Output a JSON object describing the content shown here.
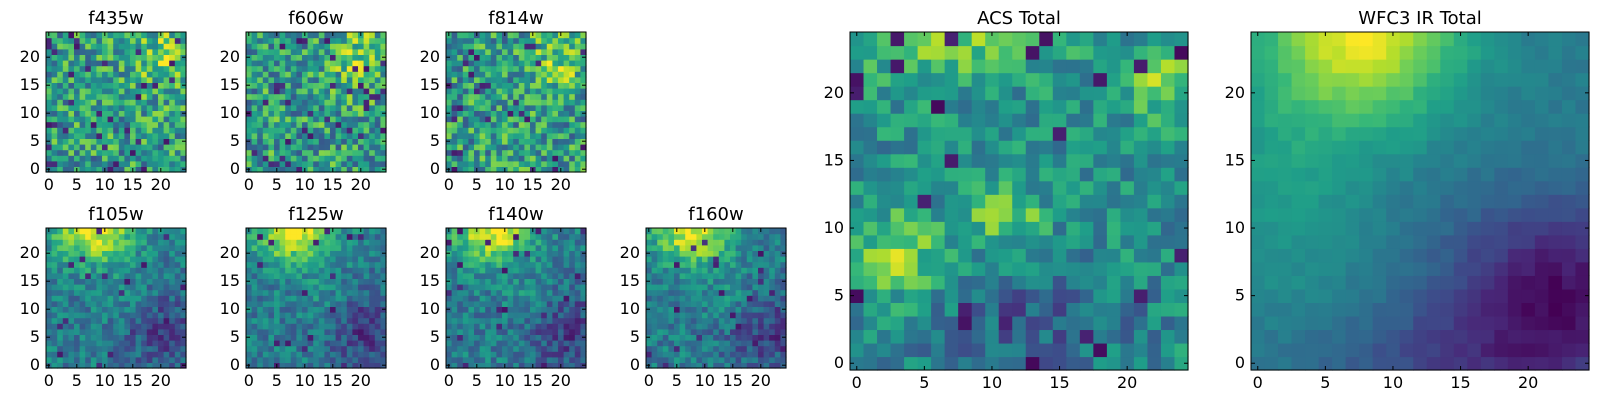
{
  "chart_data": [
    {
      "type": "heatmap",
      "title": "f435w",
      "grid": 25,
      "seed": 11,
      "pattern": "noise",
      "xticks": [
        0,
        5,
        10,
        15,
        20
      ],
      "yticks": [
        0,
        5,
        10,
        15,
        20
      ],
      "xlim": [
        0,
        24
      ],
      "ylim": [
        0,
        24
      ],
      "colormap": "viridis"
    },
    {
      "type": "heatmap",
      "title": "f606w",
      "grid": 25,
      "seed": 23,
      "pattern": "noise",
      "xticks": [
        0,
        5,
        10,
        15,
        20
      ],
      "yticks": [
        0,
        5,
        10,
        15,
        20
      ],
      "xlim": [
        0,
        24
      ],
      "ylim": [
        0,
        24
      ],
      "colormap": "viridis"
    },
    {
      "type": "heatmap",
      "title": "f814w",
      "grid": 25,
      "seed": 37,
      "pattern": "noise",
      "xticks": [
        0,
        5,
        10,
        15,
        20
      ],
      "yticks": [
        0,
        5,
        10,
        15,
        20
      ],
      "xlim": [
        0,
        24
      ],
      "ylim": [
        0,
        24
      ],
      "colormap": "viridis"
    },
    {
      "type": "heatmap",
      "title": "f105w",
      "grid": 25,
      "seed": 41,
      "pattern": "mixed",
      "xticks": [
        0,
        5,
        10,
        15,
        20
      ],
      "yticks": [
        0,
        5,
        10,
        15,
        20
      ],
      "xlim": [
        0,
        24
      ],
      "ylim": [
        0,
        24
      ],
      "colormap": "viridis"
    },
    {
      "type": "heatmap",
      "title": "f125w",
      "grid": 25,
      "seed": 53,
      "pattern": "mixed",
      "xticks": [
        0,
        5,
        10,
        15,
        20
      ],
      "yticks": [
        0,
        5,
        10,
        15,
        20
      ],
      "xlim": [
        0,
        24
      ],
      "ylim": [
        0,
        24
      ],
      "colormap": "viridis"
    },
    {
      "type": "heatmap",
      "title": "f140w",
      "grid": 25,
      "seed": 67,
      "pattern": "mixed",
      "xticks": [
        0,
        5,
        10,
        15,
        20
      ],
      "yticks": [
        0,
        5,
        10,
        15,
        20
      ],
      "xlim": [
        0,
        24
      ],
      "ylim": [
        0,
        24
      ],
      "colormap": "viridis"
    },
    {
      "type": "heatmap",
      "title": "f160w",
      "grid": 25,
      "seed": 79,
      "pattern": "mixed",
      "xticks": [
        0,
        5,
        10,
        15,
        20
      ],
      "yticks": [
        0,
        5,
        10,
        15,
        20
      ],
      "xlim": [
        0,
        24
      ],
      "ylim": [
        0,
        24
      ],
      "colormap": "viridis"
    },
    {
      "type": "heatmap",
      "title": "ACS Total",
      "grid": 25,
      "seed": 97,
      "pattern": "acs",
      "xticks": [
        0,
        5,
        10,
        15,
        20
      ],
      "yticks": [
        0,
        5,
        10,
        15,
        20
      ],
      "xlim": [
        0,
        24
      ],
      "ylim": [
        0,
        24
      ],
      "colormap": "viridis"
    },
    {
      "type": "heatmap",
      "title": "WFC3 IR Total",
      "grid": 25,
      "seed": 101,
      "pattern": "smooth",
      "xticks": [
        0,
        5,
        10,
        15,
        20
      ],
      "yticks": [
        0,
        5,
        10,
        15,
        20
      ],
      "xlim": [
        0,
        24
      ],
      "ylim": [
        0,
        24
      ],
      "colormap": "viridis"
    }
  ]
}
